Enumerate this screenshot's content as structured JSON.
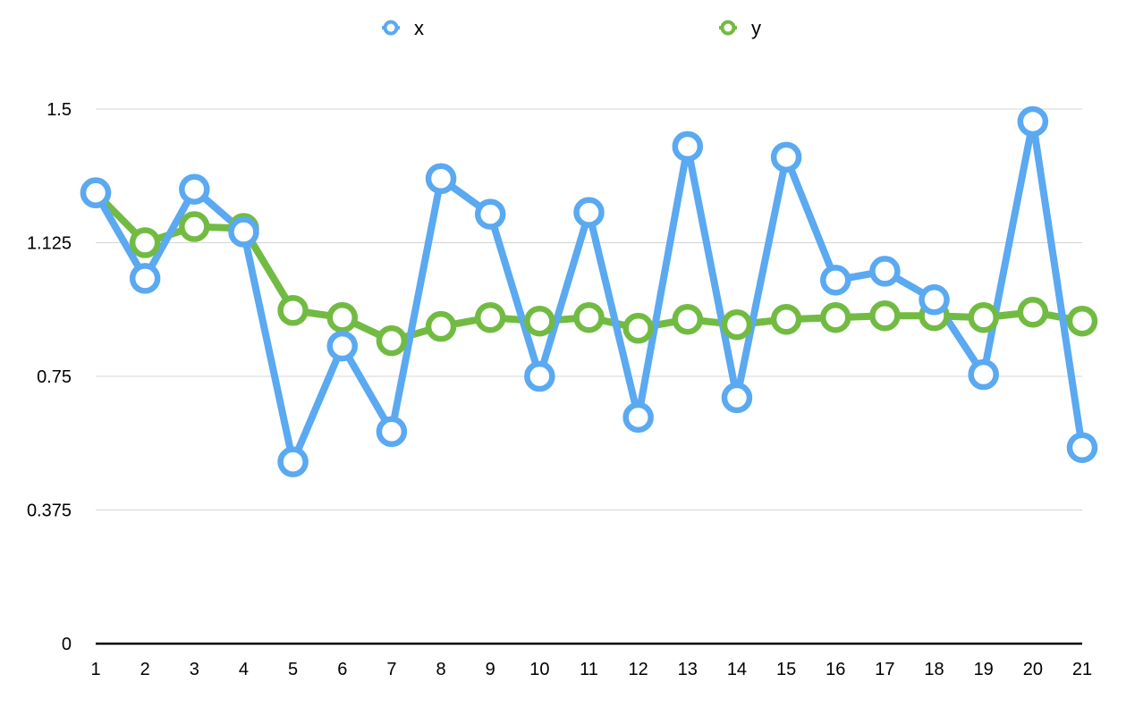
{
  "chart_data": {
    "type": "line",
    "title": "",
    "xlabel": "",
    "ylabel": "",
    "x": [
      "1",
      "2",
      "3",
      "4",
      "5",
      "6",
      "7",
      "8",
      "9",
      "10",
      "11",
      "12",
      "13",
      "14",
      "15",
      "16",
      "17",
      "18",
      "19",
      "20",
      "21"
    ],
    "yticks": [
      "0",
      "0.375",
      "0.75",
      "1.125",
      "1.5"
    ],
    "ylim": [
      0,
      1.5
    ],
    "grid": true,
    "legend_position": "top-center",
    "series": [
      {
        "name": "x",
        "color": "#5aa9f1",
        "values": [
          1.265,
          1.025,
          1.275,
          1.155,
          0.51,
          0.835,
          0.595,
          1.305,
          1.205,
          0.75,
          1.21,
          0.635,
          1.395,
          0.69,
          1.365,
          1.02,
          1.045,
          0.965,
          0.755,
          1.465,
          0.55
        ]
      },
      {
        "name": "y",
        "color": "#72bb43",
        "values": [
          1.265,
          1.125,
          1.17,
          1.165,
          0.935,
          0.915,
          0.85,
          0.89,
          0.915,
          0.905,
          0.915,
          0.885,
          0.91,
          0.895,
          0.91,
          0.915,
          0.92,
          0.92,
          0.915,
          0.93,
          0.905
        ]
      }
    ]
  }
}
